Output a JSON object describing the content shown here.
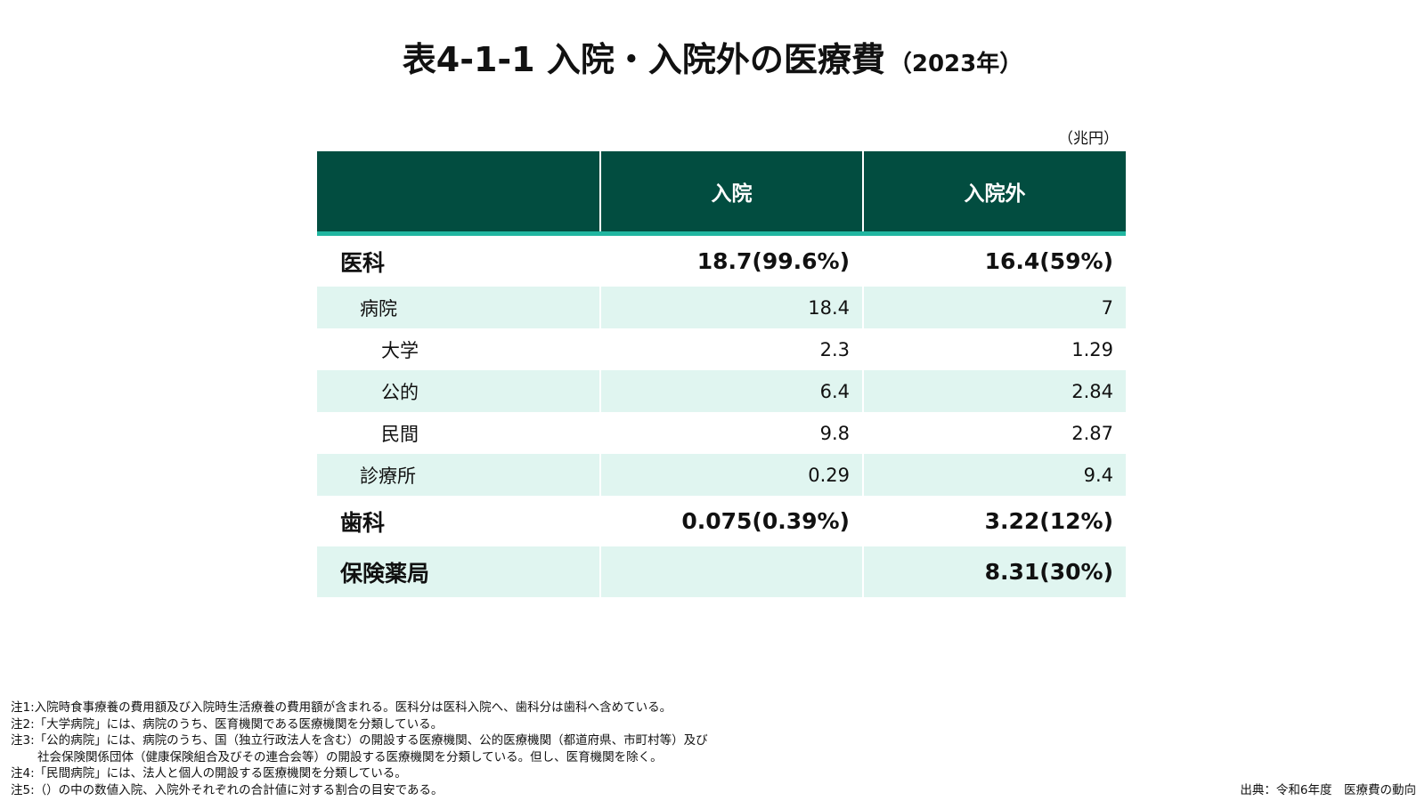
{
  "title": {
    "main": "表4-1-1 入院・入院外の医療費",
    "year": "（2023年）"
  },
  "unit": "（兆円）",
  "table": {
    "headers": [
      "",
      "入院",
      "入院外"
    ],
    "rows": [
      {
        "label": "医科",
        "inpatient": "18.7(99.6%)",
        "outpatient": "16.4(59%)"
      },
      {
        "label": "病院",
        "inpatient": "18.4",
        "outpatient": "7"
      },
      {
        "label": "大学",
        "inpatient": "2.3",
        "outpatient": "1.29"
      },
      {
        "label": "公的",
        "inpatient": "6.4",
        "outpatient": "2.84"
      },
      {
        "label": "民間",
        "inpatient": "9.8",
        "outpatient": "2.87"
      },
      {
        "label": "診療所",
        "inpatient": "0.29",
        "outpatient": "9.4"
      },
      {
        "label": "歯科",
        "inpatient": "0.075(0.39%)",
        "outpatient": "3.22(12%)"
      },
      {
        "label": "保険薬局",
        "inpatient": "",
        "outpatient": "8.31(30%)"
      }
    ]
  },
  "notes": [
    "注1:入院時食事療養の費用額及び入院時生活療養の費用額が含まれる。医科分は医科入院へ、歯科分は歯科へ含めている。",
    "注2:「大学病院」には、病院のうち、医育機関である医療機関を分類している。",
    "注3:「公的病院」には、病院のうち、国（独立行政法人を含む）の開設する医療機関、公的医療機関（都道府県、市町村等）及び",
    "社会保険関係団体（健康保険組合及びその連合会等）の開設する医療機関を分類している。但し、医育機関を除く。",
    "注4:「民間病院」には、法人と個人の開設する医療機関を分類している。",
    "注5:（）の中の数値入院、入院外それぞれの合計値に対する割合の目安である。"
  ],
  "source": "出典：令和6年度　医療費の動向"
}
